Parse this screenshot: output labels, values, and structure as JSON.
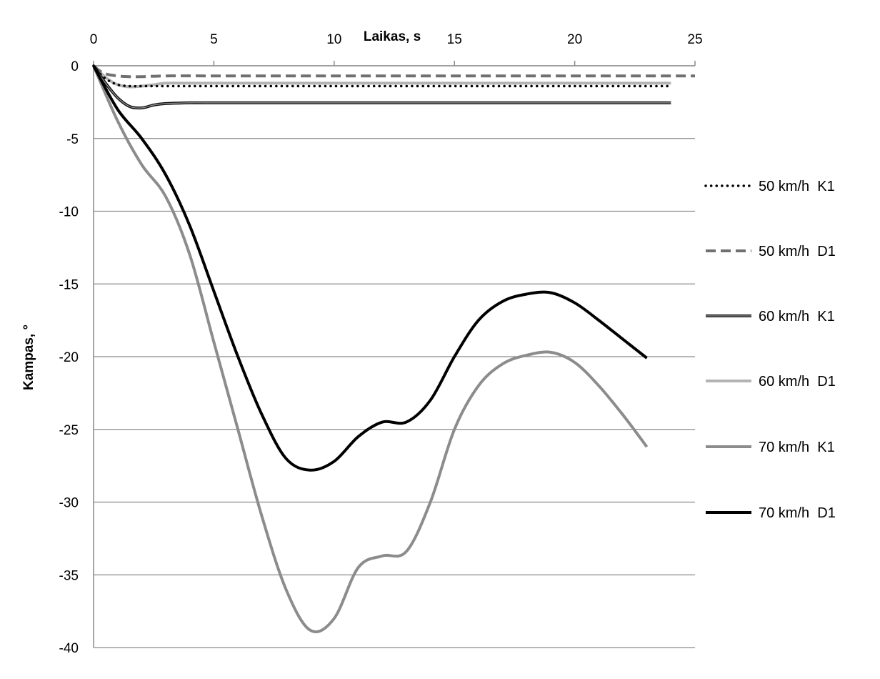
{
  "chart_data": {
    "type": "line",
    "xlabel": "Laikas, s",
    "ylabel": "Kampas, °",
    "xlim": [
      0,
      25
    ],
    "ylim": [
      -40,
      0
    ],
    "x_ticks": [
      0,
      5,
      10,
      15,
      20,
      25
    ],
    "y_ticks": [
      0,
      -5,
      -10,
      -15,
      -20,
      -25,
      -30,
      -35,
      -40
    ],
    "x_axis_position": "top",
    "grid": "horizontal",
    "legend_position": "right",
    "series": [
      {
        "name": "50 km/h  K1",
        "color": "#000000",
        "style": "dotted",
        "x": [
          0,
          0.3,
          0.6,
          1.0,
          1.5,
          2.0,
          3,
          5,
          10,
          15,
          20,
          24
        ],
        "y": [
          0,
          -0.6,
          -1.0,
          -1.3,
          -1.4,
          -1.4,
          -1.4,
          -1.4,
          -1.4,
          -1.4,
          -1.4,
          -1.4
        ]
      },
      {
        "name": "50 km/h  D1",
        "color": "#707070",
        "style": "dashed",
        "x": [
          0,
          0.3,
          0.6,
          1.0,
          1.5,
          2.0,
          3,
          5,
          10,
          15,
          20,
          25
        ],
        "y": [
          0,
          -0.4,
          -0.6,
          -0.7,
          -0.75,
          -0.75,
          -0.7,
          -0.7,
          -0.7,
          -0.7,
          -0.7,
          -0.7
        ]
      },
      {
        "name": "60 km/h  K1",
        "color": "#111111",
        "style": "double",
        "x": [
          0,
          0.5,
          1.0,
          1.5,
          2.0,
          2.5,
          3,
          4,
          5,
          10,
          15,
          20,
          24
        ],
        "y": [
          0,
          -1.2,
          -2.2,
          -2.8,
          -2.9,
          -2.7,
          -2.6,
          -2.55,
          -2.55,
          -2.55,
          -2.55,
          -2.55,
          -2.55
        ]
      },
      {
        "name": "60 km/h  D1",
        "color": "#b3b3b3",
        "style": "solid",
        "x": [
          0,
          0.5,
          1.0,
          1.5,
          2.0,
          2.5,
          3,
          4,
          5,
          10,
          15,
          20,
          24
        ],
        "y": [
          0,
          -0.8,
          -1.3,
          -1.45,
          -1.4,
          -1.3,
          -1.2,
          -1.2,
          -1.2,
          -1.2,
          -1.2,
          -1.2,
          -1.2
        ]
      },
      {
        "name": "70 km/h  K1",
        "color": "#8c8c8c",
        "style": "solid",
        "x": [
          0,
          1,
          2,
          3,
          4,
          5,
          6,
          7,
          8,
          9,
          10,
          11,
          12,
          13,
          14,
          15,
          16,
          17,
          18,
          19,
          20,
          21,
          22,
          23
        ],
        "y": [
          0,
          -3.8,
          -6.8,
          -9.0,
          -13.0,
          -19.0,
          -25.0,
          -31.0,
          -36.0,
          -38.8,
          -38.0,
          -34.5,
          -33.7,
          -33.4,
          -30.0,
          -25.0,
          -22.0,
          -20.5,
          -19.9,
          -19.7,
          -20.4,
          -22.0,
          -24.0,
          -26.2
        ]
      },
      {
        "name": "70 km/h  D1",
        "color": "#000000",
        "style": "solid",
        "x": [
          0,
          1,
          2,
          3,
          4,
          5,
          6,
          7,
          8,
          9,
          10,
          11,
          12,
          13,
          14,
          15,
          16,
          17,
          18,
          19,
          20,
          21,
          22,
          23
        ],
        "y": [
          0,
          -3.0,
          -5.0,
          -7.5,
          -11.0,
          -15.5,
          -20.0,
          -24.0,
          -27.0,
          -27.8,
          -27.2,
          -25.5,
          -24.5,
          -24.5,
          -23.0,
          -20.0,
          -17.5,
          -16.2,
          -15.7,
          -15.6,
          -16.3,
          -17.5,
          -18.8,
          -20.1
        ]
      }
    ]
  }
}
